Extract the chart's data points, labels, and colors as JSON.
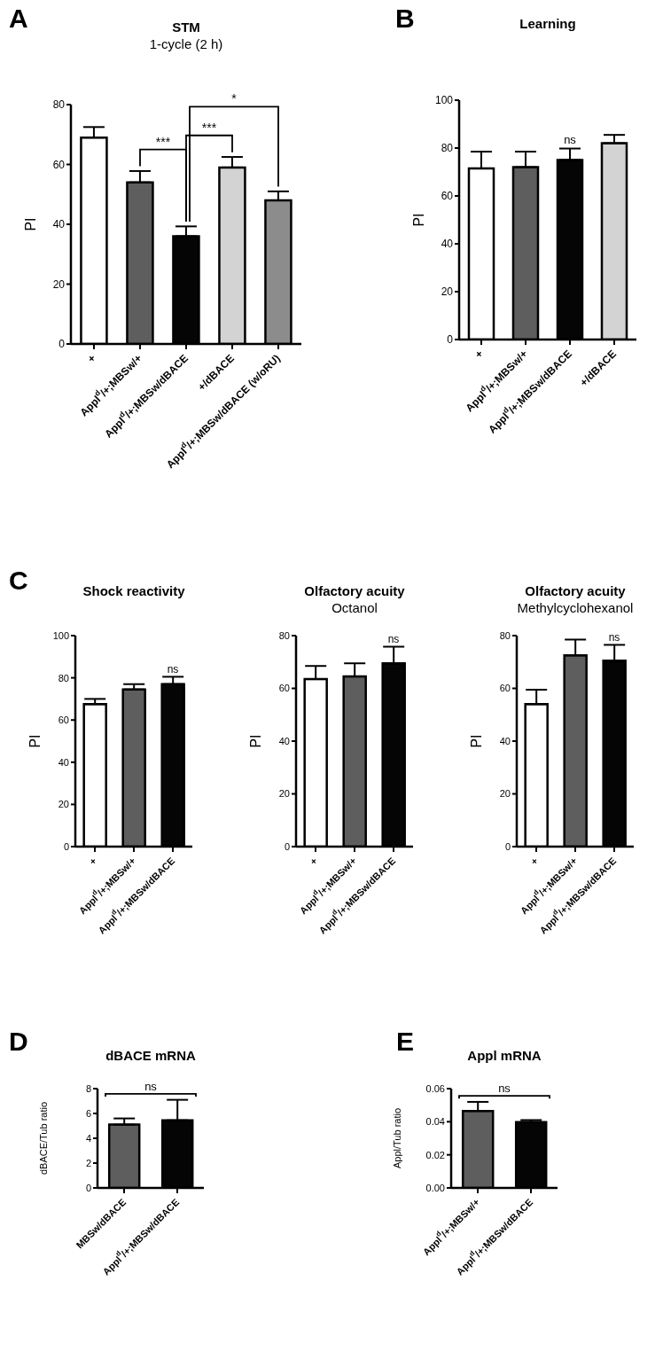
{
  "chart_data": [
    {
      "type": "bar",
      "title": "STM",
      "subtitle": "1-cycle (2 h)",
      "ylabel": "PI",
      "categories": [
        "+",
        "Appl$^{d}$/+;MBSw/+",
        "Appl$^{d}$/+;MBSw/dBACE",
        "+/dBACE",
        "Appl$^{d}$/+;MBSw/dBACE (w/oRU)"
      ],
      "values": [
        69,
        54,
        36,
        59,
        48
      ],
      "errors": [
        3.5,
        3.8,
        3.3,
        3.5,
        3
      ],
      "colors": [
        "#ffffff",
        "#5e5e5e",
        "#050505",
        "#d3d3d3",
        "#8c8c8c"
      ],
      "ylim": [
        0,
        80
      ],
      "yticks": [
        0,
        20,
        40,
        60,
        80
      ],
      "annotations": [
        "A",
        "***",
        "***",
        "*"
      ]
    },
    {
      "type": "bar",
      "title": "Learning",
      "ylabel": "PI",
      "categories": [
        "+",
        "Appl$^{d}$/+;MBSw/+",
        "Appl$^{d}$/+;MBSw/dBACE",
        "+/dBACE"
      ],
      "values": [
        71.5,
        72,
        75,
        82
      ],
      "errors": [
        7,
        6.5,
        4.8,
        3.5
      ],
      "colors": [
        "#ffffff",
        "#5e5e5e",
        "#050505",
        "#d3d3d3"
      ],
      "ylim": [
        0,
        100
      ],
      "yticks": [
        0,
        20,
        40,
        60,
        80,
        100
      ],
      "annotations": [
        "B",
        "ns"
      ]
    },
    {
      "type": "bar",
      "title": "Shock reactivity",
      "ylabel": "PI",
      "categories": [
        "+",
        "Appl$^{d}$/+;MBSw/+",
        "Appl$^{d}$/+;MBSw/dBACE"
      ],
      "values": [
        67.5,
        74.5,
        77
      ],
      "errors": [
        2.5,
        2.5,
        3.5
      ],
      "colors": [
        "#ffffff",
        "#5e5e5e",
        "#050505"
      ],
      "ylim": [
        0,
        100
      ],
      "yticks": [
        0,
        20,
        40,
        60,
        80,
        100
      ],
      "annotations": [
        "C",
        "ns"
      ]
    },
    {
      "type": "bar",
      "title": "Olfactory acuity",
      "subtitle": "Octanol",
      "ylabel": "PI",
      "categories": [
        "+",
        "Appl$^{d}$/+;MBSw/+",
        "Appl$^{d}$/+;MBSw/dBACE"
      ],
      "values": [
        63.5,
        64.5,
        69.5
      ],
      "errors": [
        5,
        5,
        6.3
      ],
      "colors": [
        "#ffffff",
        "#5e5e5e",
        "#050505"
      ],
      "ylim": [
        0,
        80
      ],
      "yticks": [
        0,
        20,
        40,
        60,
        80
      ],
      "annotations": [
        "ns"
      ]
    },
    {
      "type": "bar",
      "title": "Olfactory acuity",
      "subtitle": "Methylcyclohexanol",
      "ylabel": "PI",
      "categories": [
        "+",
        "Appl$^{d}$/+;MBSw/+",
        "Appl$^{d}$/+;MBSw/dBACE"
      ],
      "values": [
        54,
        72.5,
        70.5
      ],
      "errors": [
        5.5,
        6,
        6
      ],
      "colors": [
        "#ffffff",
        "#5e5e5e",
        "#050505"
      ],
      "ylim": [
        0,
        80
      ],
      "yticks": [
        0,
        20,
        40,
        60,
        80
      ],
      "annotations": [
        "ns"
      ]
    },
    {
      "type": "bar",
      "title": "dBACE mRNA",
      "ylabel": "dBACE/Tub ratio",
      "categories": [
        "MBSw/dBACE",
        "Appl$^{d}$/+;MBSw/dBACE"
      ],
      "values": [
        5.1,
        5.45
      ],
      "errors": [
        0.5,
        1.65
      ],
      "colors": [
        "#5e5e5e",
        "#050505"
      ],
      "ylim": [
        0,
        8
      ],
      "yticks": [
        0,
        2,
        4,
        6,
        8
      ],
      "annotations": [
        "D",
        "ns"
      ]
    },
    {
      "type": "bar",
      "title": "Appl mRNA",
      "ylabel": "Appl/Tub ratio",
      "categories": [
        "Appl$^{d}$/+;MBSw/+",
        "Appl$^{d}$/+;MBSw/dBACE"
      ],
      "values": [
        0.0465,
        0.0398
      ],
      "errors": [
        0.0055,
        0.0012
      ],
      "colors": [
        "#5e5e5e",
        "#050505"
      ],
      "ylim": [
        0,
        0.06
      ],
      "yticks": [
        {
          "value": 0,
          "label": "0.00"
        },
        {
          "value": 0.02,
          "label": "0.02"
        },
        {
          "value": 0.04,
          "label": "0.04"
        },
        {
          "value": 0.06,
          "label": "0.06"
        }
      ],
      "annotations": [
        "E",
        "ns"
      ]
    }
  ]
}
